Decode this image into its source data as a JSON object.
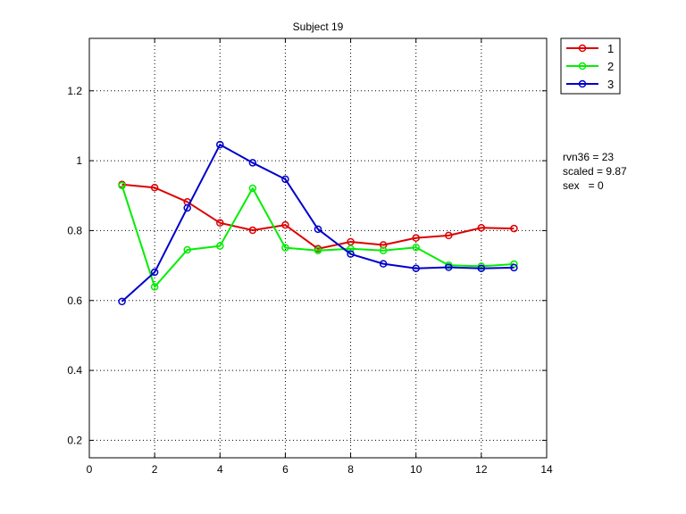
{
  "chart_data": {
    "type": "line",
    "title": "Subject 19",
    "xlabel": "",
    "ylabel": "",
    "xlim": [
      0,
      14
    ],
    "ylim": [
      0.15,
      1.35
    ],
    "xticks": [
      0,
      2,
      4,
      6,
      8,
      10,
      12,
      14
    ],
    "yticks": [
      0.2,
      0.4,
      0.6,
      0.8,
      1.0,
      1.2
    ],
    "ytick_labels": [
      "0.2",
      "0.4",
      "0.6",
      "0.8",
      "1",
      "1.2"
    ],
    "grid": true,
    "legend_position": "outside-top-right",
    "x": [
      1,
      2,
      3,
      4,
      5,
      6,
      7,
      8,
      9,
      10,
      11,
      12,
      13
    ],
    "series": [
      {
        "name": "1",
        "color": "#dd0000",
        "values": [
          0.932,
          0.923,
          0.882,
          0.822,
          0.801,
          0.816,
          0.748,
          0.768,
          0.759,
          0.779,
          0.786,
          0.808,
          0.806
        ]
      },
      {
        "name": "2",
        "color": "#00ee00",
        "values": [
          0.929,
          0.639,
          0.745,
          0.756,
          0.921,
          0.751,
          0.743,
          0.748,
          0.743,
          0.752,
          0.701,
          0.698,
          0.704
        ]
      },
      {
        "name": "3",
        "color": "#0000cc",
        "values": [
          0.597,
          0.681,
          0.865,
          1.046,
          0.994,
          0.947,
          0.804,
          0.733,
          0.705,
          0.692,
          0.695,
          0.692,
          0.694
        ]
      }
    ],
    "annotations": [
      "rvn36 = 23",
      "scaled = 9.87",
      "sex   = 0"
    ]
  }
}
